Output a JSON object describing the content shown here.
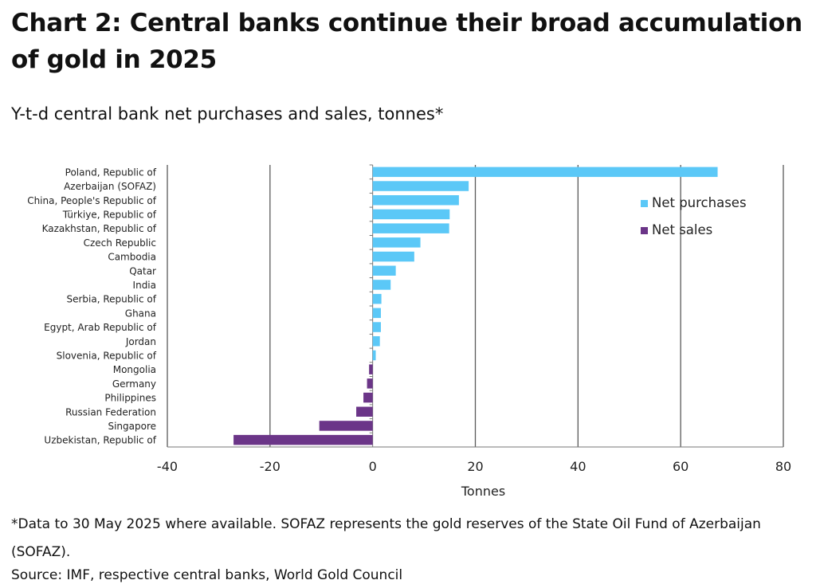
{
  "title": "Chart 2: Central banks continue their broad accumulation of gold in 2025",
  "subtitle": "Y-t-d central bank net purchases and sales, tonnes*",
  "footnote": "*Data to 30 May 2025 where available. SOFAZ represents the gold reserves of the State Oil Fund of Azerbaijan (SOFAZ).",
  "source": "Source: IMF, respective central banks, World Gold Council",
  "colors": {
    "purchases": "#5BC8F7",
    "sales": "#6B3588",
    "grid": "#5a5a5a",
    "axis": "#777777"
  },
  "chart_data": {
    "type": "bar",
    "orientation": "horizontal",
    "categories": [
      "Poland, Republic of",
      "Azerbaijan (SOFAZ)",
      "China, People's Republic of",
      "Türkiye, Republic of",
      "Kazakhstan, Republic of",
      "Czech Republic",
      "Cambodia",
      "Qatar",
      "India",
      "Serbia, Republic of",
      "Ghana",
      "Egypt, Arab Republic of",
      "Jordan",
      "Slovenia, Republic of",
      "Mongolia",
      "Germany",
      "Philippines",
      "Russian Federation",
      "Singapore",
      "Uzbekistan, Republic of"
    ],
    "values": [
      67.2,
      18.7,
      16.8,
      15.0,
      14.9,
      9.3,
      8.1,
      4.5,
      3.5,
      1.7,
      1.6,
      1.6,
      1.4,
      0.6,
      -0.7,
      -1.1,
      -1.8,
      -3.2,
      -10.4,
      -27.1
    ],
    "legend": [
      "Net purchases",
      "Net sales"
    ],
    "legend_position": "top-right",
    "xlabel": "Tonnes",
    "xlim": [
      -40,
      80
    ],
    "xticks": [
      "-40",
      "-20",
      "0",
      "20",
      "40",
      "60",
      "80"
    ],
    "grid": true
  }
}
